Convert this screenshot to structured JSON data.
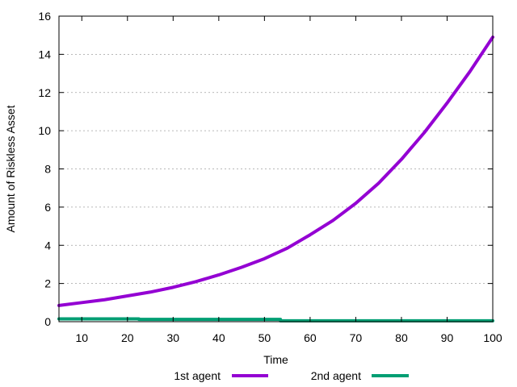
{
  "chart_data": {
    "type": "line",
    "xlabel": "Time",
    "ylabel": "Amount of Riskless Asset",
    "xlim": [
      5,
      100
    ],
    "ylim": [
      0,
      16
    ],
    "xticks": [
      10,
      20,
      30,
      40,
      50,
      60,
      70,
      80,
      90,
      100
    ],
    "yticks": [
      0,
      2,
      4,
      6,
      8,
      10,
      12,
      14,
      16
    ],
    "grid": "horizontal-dotted",
    "legend_position": "bottom-center",
    "series": [
      {
        "name": "1st agent",
        "color": "#9400d3",
        "x": [
          5,
          10,
          15,
          20,
          25,
          30,
          35,
          40,
          45,
          50,
          55,
          60,
          65,
          70,
          75,
          80,
          85,
          90,
          95,
          100
        ],
        "y": [
          0.85,
          1.0,
          1.15,
          1.35,
          1.55,
          1.8,
          2.1,
          2.45,
          2.85,
          3.3,
          3.85,
          4.55,
          5.3,
          6.2,
          7.25,
          8.5,
          9.9,
          11.45,
          13.1,
          14.9
        ]
      },
      {
        "name": "2nd agent",
        "color": "#009e73",
        "x": [
          5,
          22.5,
          22.5,
          53.5,
          53.5,
          100
        ],
        "y": [
          0.15,
          0.15,
          0.12,
          0.12,
          0.05,
          0.05
        ]
      }
    ]
  }
}
